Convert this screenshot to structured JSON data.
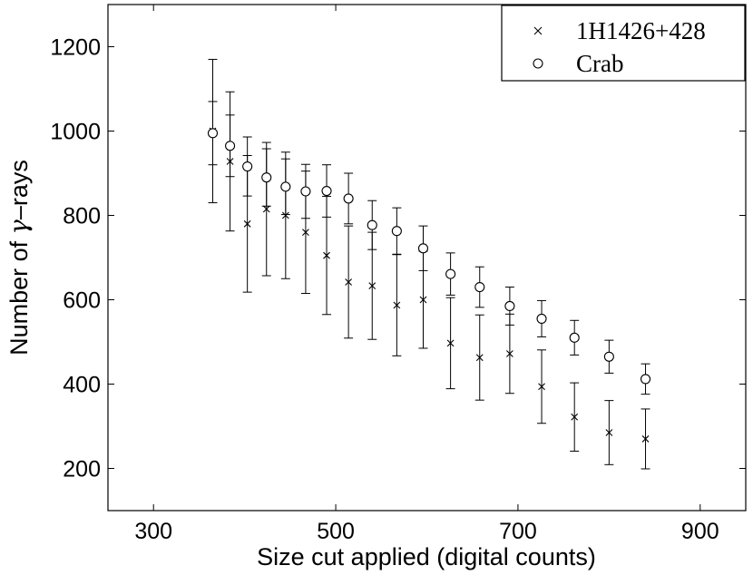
{
  "chart_data": {
    "type": "scatter",
    "title": "",
    "xlabel": "Size cut applied (digital counts)",
    "ylabel_prefix": "Number of ",
    "ylabel_symbol": "γ",
    "ylabel_suffix": "–rays",
    "xlim": [
      250,
      950
    ],
    "ylim": [
      100,
      1300
    ],
    "xticks": [
      300,
      500,
      700,
      900
    ],
    "yticks": [
      200,
      400,
      600,
      800,
      1000,
      1200
    ],
    "grid": false,
    "legend_position": "top-right",
    "series": [
      {
        "name": "1H1426+428",
        "marker": "x",
        "points": [
          {
            "x": 365,
            "y": 1000,
            "err": 170
          },
          {
            "x": 384,
            "y": 928,
            "err": 165
          },
          {
            "x": 403,
            "y": 780,
            "err": 162
          },
          {
            "x": 424,
            "y": 815,
            "err": 158
          },
          {
            "x": 445,
            "y": 800,
            "err": 150
          },
          {
            "x": 467,
            "y": 760,
            "err": 145
          },
          {
            "x": 490,
            "y": 705,
            "err": 140
          },
          {
            "x": 514,
            "y": 642,
            "err": 133
          },
          {
            "x": 540,
            "y": 633,
            "err": 127
          },
          {
            "x": 567,
            "y": 587,
            "err": 120
          },
          {
            "x": 596,
            "y": 600,
            "err": 115
          },
          {
            "x": 626,
            "y": 497,
            "err": 108
          },
          {
            "x": 658,
            "y": 463,
            "err": 101
          },
          {
            "x": 691,
            "y": 472,
            "err": 94
          },
          {
            "x": 726,
            "y": 394,
            "err": 87
          },
          {
            "x": 762,
            "y": 322,
            "err": 81
          },
          {
            "x": 800,
            "y": 285,
            "err": 76
          },
          {
            "x": 840,
            "y": 270,
            "err": 71
          }
        ]
      },
      {
        "name": "Crab",
        "marker": "circle",
        "points": [
          {
            "x": 365,
            "y": 995,
            "err": 75
          },
          {
            "x": 384,
            "y": 965,
            "err": 73
          },
          {
            "x": 403,
            "y": 916,
            "err": 70
          },
          {
            "x": 424,
            "y": 890,
            "err": 68
          },
          {
            "x": 445,
            "y": 868,
            "err": 66
          },
          {
            "x": 467,
            "y": 857,
            "err": 64
          },
          {
            "x": 490,
            "y": 858,
            "err": 62
          },
          {
            "x": 514,
            "y": 840,
            "err": 60
          },
          {
            "x": 540,
            "y": 777,
            "err": 58
          },
          {
            "x": 567,
            "y": 763,
            "err": 55
          },
          {
            "x": 596,
            "y": 722,
            "err": 53
          },
          {
            "x": 626,
            "y": 661,
            "err": 50
          },
          {
            "x": 658,
            "y": 630,
            "err": 48
          },
          {
            "x": 691,
            "y": 585,
            "err": 45
          },
          {
            "x": 726,
            "y": 555,
            "err": 43
          },
          {
            "x": 762,
            "y": 510,
            "err": 41
          },
          {
            "x": 800,
            "y": 465,
            "err": 39
          },
          {
            "x": 840,
            "y": 412,
            "err": 36
          }
        ]
      }
    ]
  }
}
